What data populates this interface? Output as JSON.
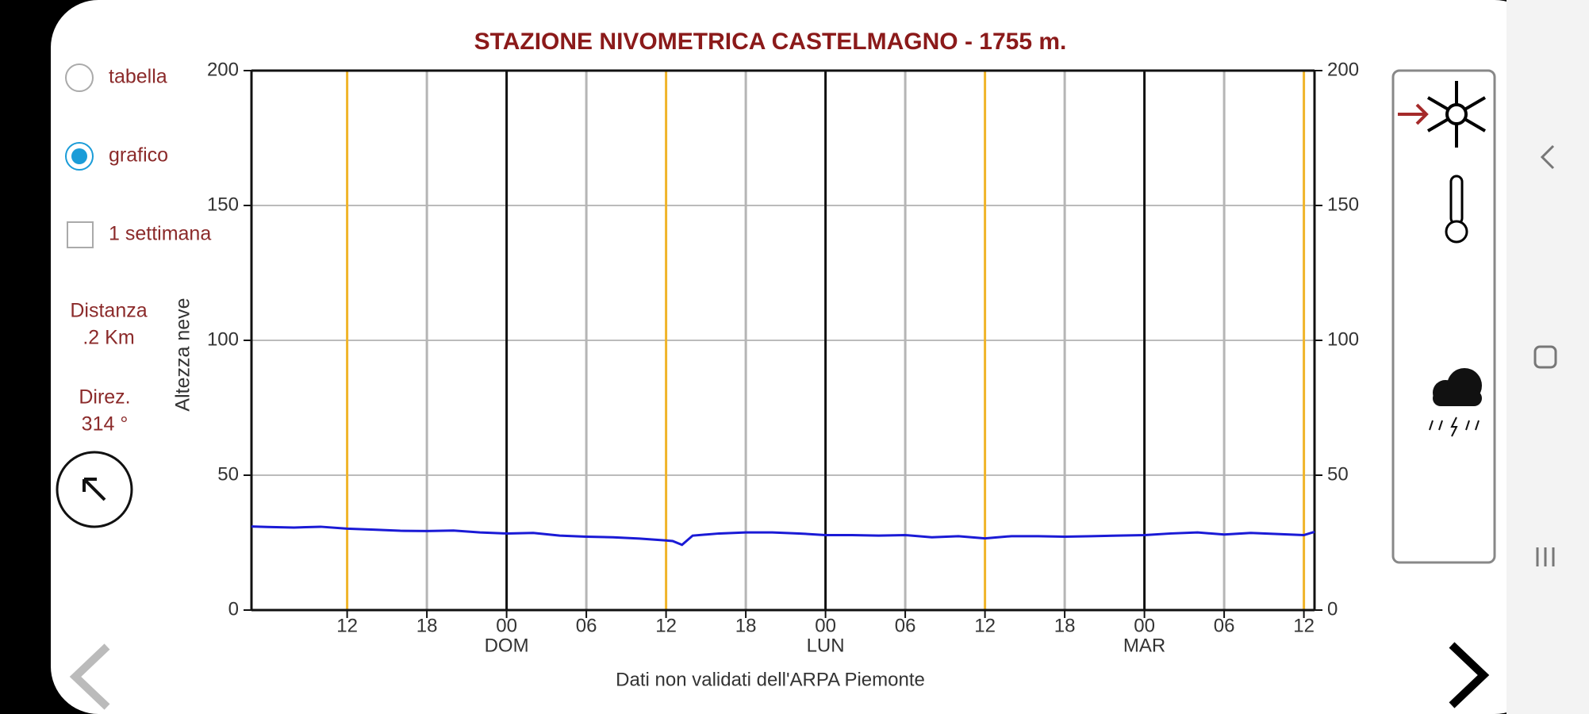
{
  "ui": {
    "options": {
      "table": "tabella",
      "graph": "grafico",
      "week": "1 settimana"
    },
    "distance": {
      "label": "Distanza",
      "value": ".2 Km"
    },
    "direction": {
      "label": "Direz.",
      "value": "314 °"
    }
  },
  "chart_data": {
    "type": "line",
    "title": "STAZIONE NIVOMETRICA CASTELMAGNO - 1755 m.",
    "ylabel": "Altezza neve",
    "footer": "Dati non validati dell'ARPA Piemonte",
    "ylim": [
      0,
      200
    ],
    "yticks": [
      0,
      50,
      100,
      150,
      200
    ],
    "y2lim": [
      0,
      200
    ],
    "y2ticks": [
      0,
      50,
      100,
      150,
      200
    ],
    "xlim": [
      4.8,
      84.8
    ],
    "xticks": [
      {
        "value": 12,
        "label": "12"
      },
      {
        "value": 18,
        "label": "18"
      },
      {
        "value": 24,
        "label": "00"
      },
      {
        "value": 30,
        "label": "06"
      },
      {
        "value": 36,
        "label": "12"
      },
      {
        "value": 42,
        "label": "18"
      },
      {
        "value": 48,
        "label": "00"
      },
      {
        "value": 54,
        "label": "06"
      },
      {
        "value": 60,
        "label": "12"
      },
      {
        "value": 66,
        "label": "18"
      },
      {
        "value": 72,
        "label": "00"
      },
      {
        "value": 78,
        "label": "06"
      },
      {
        "value": 84,
        "label": "12"
      }
    ],
    "day_labels": [
      {
        "value": 24,
        "label": "DOM"
      },
      {
        "value": 48,
        "label": "LUN"
      },
      {
        "value": 72,
        "label": "MAR"
      }
    ],
    "grid": true,
    "grid_colors": {
      "midnight": "#111111",
      "noon": "#f0b429",
      "other": "#b5b5b5",
      "horizontal": "#bbbbbb"
    },
    "series": [
      {
        "color": "#1a1ad6",
        "x": [
          4.8,
          6,
          8,
          10,
          12,
          14,
          16,
          18,
          20,
          22,
          24,
          26,
          28,
          30,
          32,
          34,
          36,
          36.5,
          37.2,
          38,
          40,
          42,
          44,
          46,
          48,
          50,
          52,
          54,
          56,
          58,
          60,
          62,
          64,
          66,
          68,
          70,
          72,
          74,
          76,
          78,
          80,
          82,
          84,
          84.8
        ],
        "values": [
          31,
          30.8,
          30.6,
          30.9,
          30.2,
          29.8,
          29.4,
          29.3,
          29.5,
          28.8,
          28.4,
          28.6,
          27.6,
          27.2,
          27.0,
          26.5,
          25.8,
          25.6,
          24.2,
          27.6,
          28.4,
          28.8,
          28.8,
          28.4,
          27.8,
          27.8,
          27.6,
          27.8,
          27.0,
          27.4,
          26.6,
          27.4,
          27.4,
          27.2,
          27.4,
          27.6,
          27.8,
          28.4,
          28.8,
          28.0,
          28.6,
          28.2,
          27.8,
          29.0
        ]
      }
    ]
  }
}
